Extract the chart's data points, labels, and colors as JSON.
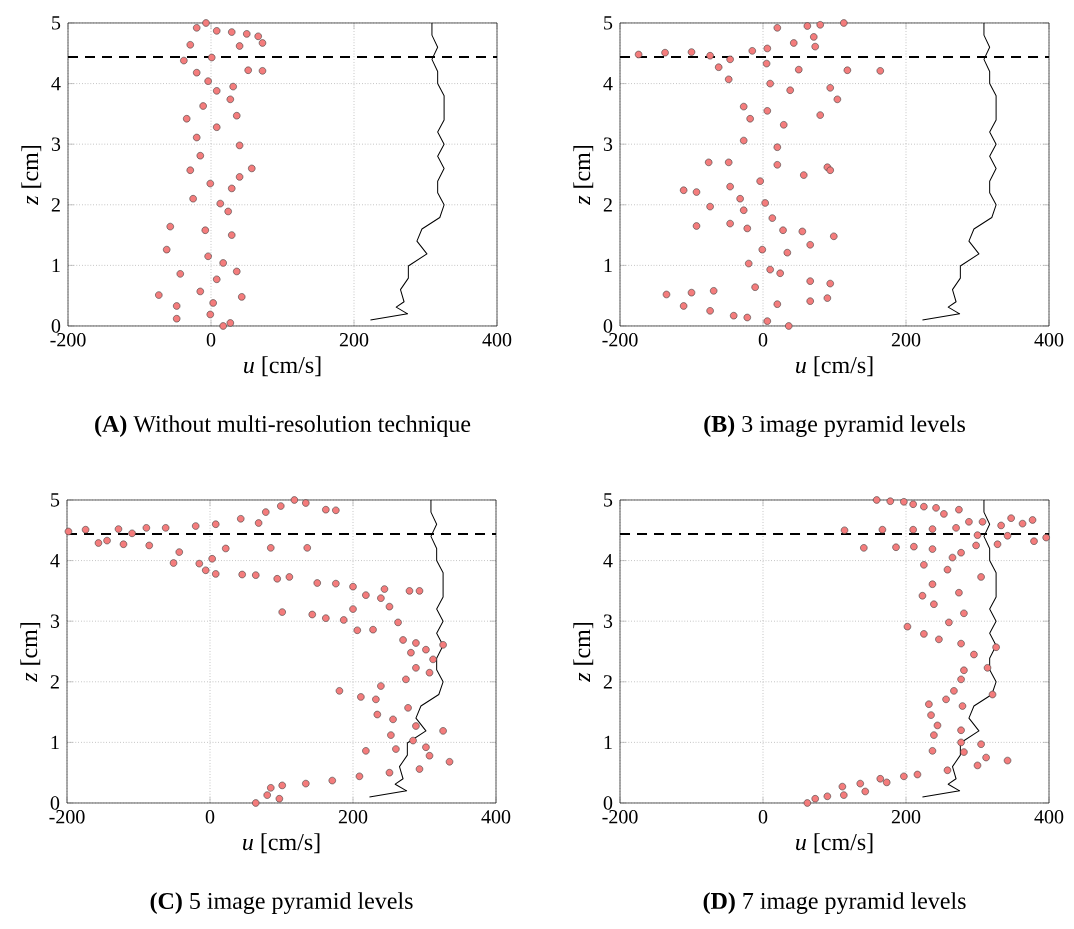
{
  "chart_data": [
    {
      "type": "scatter",
      "title": "**(A)** Without multi-resolution technique",
      "xlabel": "*u* [cm/s]",
      "ylabel": "*z* [cm]",
      "xlim": [
        -200,
        400
      ],
      "ylim": [
        0,
        5
      ],
      "xticks": [
        -200,
        0,
        200,
        400
      ],
      "yticks": [
        0,
        1,
        2,
        3,
        4,
        5
      ],
      "grid": true,
      "ref_lines": [
        {
          "axis": "y",
          "value": 4.44,
          "color": "#000000",
          "line_style": "dashed"
        }
      ],
      "series": [
        {
          "marker": "circle",
          "color": "#f47c7c",
          "x": [
            -7,
            -20,
            8,
            29,
            50,
            66,
            72,
            40,
            -29,
            -38,
            1,
            -20,
            52,
            72,
            -4,
            31,
            8,
            27,
            -11,
            -34,
            36,
            8,
            -20,
            40,
            -15,
            57,
            -29,
            40,
            -1,
            29,
            -25,
            13,
            24,
            -57,
            -8,
            29,
            -62,
            -4,
            17,
            36,
            -43,
            8,
            -15,
            -73,
            43,
            3,
            -48,
            -1,
            -48,
            27,
            17
          ],
          "values": [
            5.0,
            4.92,
            4.87,
            4.85,
            4.82,
            4.78,
            4.67,
            4.62,
            4.64,
            4.38,
            4.43,
            4.18,
            4.22,
            4.21,
            4.04,
            3.95,
            3.88,
            3.74,
            3.63,
            3.42,
            3.47,
            3.28,
            3.11,
            2.98,
            2.81,
            2.6,
            2.57,
            2.46,
            2.35,
            2.27,
            2.1,
            2.02,
            1.89,
            1.64,
            1.58,
            1.5,
            1.26,
            1.15,
            1.04,
            0.9,
            0.86,
            0.77,
            0.57,
            0.51,
            0.48,
            0.38,
            0.33,
            0.19,
            0.12,
            0.05,
            0.0
          ]
        },
        {
          "type": "line",
          "marker": "none",
          "color": "#000000",
          "x": [
            223,
            275,
            259,
            270,
            265,
            276,
            276,
            302,
            288,
            295,
            320,
            326,
            317,
            317,
            326,
            317,
            326,
            317,
            326,
            326,
            317,
            317,
            309,
            317,
            309,
            309
          ],
          "values": [
            0.1,
            0.2,
            0.31,
            0.4,
            0.6,
            0.79,
            0.99,
            1.19,
            1.4,
            1.6,
            1.79,
            2.0,
            2.2,
            2.39,
            2.6,
            2.8,
            3.0,
            3.2,
            3.4,
            3.8,
            4.0,
            4.2,
            4.4,
            4.6,
            4.8,
            5.0
          ]
        }
      ]
    },
    {
      "type": "scatter",
      "title": "**(B)** 3 image pyramid levels",
      "xlabel": "*u* [cm/s]",
      "ylabel": "*z* [cm]",
      "xlim": [
        -200,
        400
      ],
      "ylim": [
        0,
        5
      ],
      "xticks": [
        -200,
        0,
        200,
        400
      ],
      "yticks": [
        0,
        1,
        2,
        3,
        4,
        5
      ],
      "grid": true,
      "ref_lines": [
        {
          "axis": "y",
          "value": 4.44,
          "color": "#000000",
          "line_style": "dashed"
        }
      ],
      "series": [
        {
          "marker": "circle",
          "color": "#f47c7c",
          "x": [
            113,
            80,
            20,
            62,
            71,
            43,
            73,
            6,
            -15,
            -174,
            -137,
            -100,
            -74,
            -46,
            -62,
            5,
            50,
            118,
            164,
            -48,
            10,
            94,
            38,
            104,
            -27,
            6,
            80,
            -18,
            29,
            -27,
            20,
            -76,
            -48,
            20,
            90,
            94,
            57,
            -4,
            -46,
            -111,
            -93,
            -32,
            3,
            -74,
            -27,
            13,
            -93,
            -46,
            -22,
            28,
            99,
            55,
            66,
            -1,
            34,
            -20,
            10,
            24,
            66,
            94,
            -11,
            -69,
            -135,
            -100,
            90,
            66,
            20,
            -111,
            -74,
            -41,
            -22,
            6,
            36
          ],
          "values": [
            5.0,
            4.97,
            4.92,
            4.95,
            4.77,
            4.67,
            4.61,
            4.58,
            4.54,
            4.48,
            4.51,
            4.52,
            4.46,
            4.4,
            4.27,
            4.33,
            4.23,
            4.22,
            4.21,
            4.07,
            4.0,
            3.93,
            3.89,
            3.74,
            3.62,
            3.55,
            3.48,
            3.42,
            3.32,
            3.06,
            2.95,
            2.7,
            2.7,
            2.66,
            2.62,
            2.57,
            2.49,
            2.39,
            2.3,
            2.24,
            2.21,
            2.1,
            2.03,
            1.97,
            1.91,
            1.78,
            1.65,
            1.69,
            1.61,
            1.58,
            1.48,
            1.56,
            1.34,
            1.26,
            1.21,
            1.03,
            0.93,
            0.87,
            0.74,
            0.7,
            0.64,
            0.58,
            0.52,
            0.55,
            0.46,
            0.41,
            0.36,
            0.33,
            0.25,
            0.17,
            0.14,
            0.08,
            0.0
          ]
        },
        {
          "type": "line",
          "marker": "none",
          "color": "#000000",
          "x": [
            223,
            275,
            259,
            270,
            265,
            276,
            276,
            302,
            288,
            295,
            320,
            326,
            317,
            317,
            326,
            317,
            326,
            317,
            326,
            326,
            317,
            317,
            309,
            317,
            309,
            309
          ],
          "values": [
            0.1,
            0.2,
            0.31,
            0.4,
            0.6,
            0.79,
            0.99,
            1.19,
            1.4,
            1.6,
            1.79,
            2.0,
            2.2,
            2.39,
            2.6,
            2.8,
            3.0,
            3.2,
            3.4,
            3.8,
            4.0,
            4.2,
            4.4,
            4.6,
            4.8,
            5.0
          ]
        }
      ]
    },
    {
      "type": "scatter",
      "title": "**(C)** 5 image pyramid levels",
      "xlabel": "*u* [cm/s]",
      "ylabel": "*z* [cm]",
      "xlim": [
        -200,
        400
      ],
      "ylim": [
        0,
        5
      ],
      "xticks": [
        -200,
        0,
        200,
        400
      ],
      "yticks": [
        0,
        1,
        2,
        3,
        4,
        5
      ],
      "grid": true,
      "ref_lines": [
        {
          "axis": "y",
          "value": 4.44,
          "color": "#000000",
          "line_style": "dashed"
        }
      ],
      "series": [
        {
          "marker": "circle",
          "color": "#f47c7c",
          "x": [
            118,
            99,
            134,
            162,
            176,
            78,
            43,
            68,
            8,
            -20,
            -62,
            -89,
            -128,
            -174,
            -198,
            -109,
            -144,
            -156,
            -121,
            -85,
            22,
            85,
            136,
            -43,
            -51,
            -15,
            3,
            -6,
            8,
            45,
            64,
            94,
            111,
            150,
            176,
            200,
            244,
            279,
            293,
            218,
            239,
            251,
            101,
            143,
            162,
            187,
            200,
            206,
            228,
            263,
            270,
            288,
            326,
            302,
            281,
            312,
            288,
            307,
            274,
            239,
            181,
            211,
            232,
            277,
            234,
            256,
            288,
            326,
            253,
            284,
            302,
            218,
            260,
            307,
            335,
            293,
            251,
            209,
            171,
            134,
            101,
            85,
            97,
            64,
            80
          ],
          "values": [
            5.0,
            4.9,
            4.95,
            4.84,
            4.83,
            4.8,
            4.69,
            4.62,
            4.6,
            4.57,
            4.54,
            4.54,
            4.52,
            4.51,
            4.48,
            4.45,
            4.33,
            4.29,
            4.27,
            4.25,
            4.2,
            4.21,
            4.21,
            4.14,
            3.96,
            3.95,
            4.03,
            3.84,
            3.78,
            3.77,
            3.76,
            3.7,
            3.73,
            3.63,
            3.62,
            3.57,
            3.53,
            3.5,
            3.5,
            3.43,
            3.38,
            3.24,
            3.15,
            3.11,
            3.05,
            3.02,
            3.2,
            2.85,
            2.86,
            2.98,
            2.69,
            2.64,
            2.61,
            2.53,
            2.48,
            2.37,
            2.23,
            2.15,
            2.04,
            1.93,
            1.85,
            1.75,
            1.71,
            1.57,
            1.46,
            1.38,
            1.27,
            1.19,
            1.12,
            1.03,
            0.92,
            0.86,
            0.89,
            0.78,
            0.68,
            0.56,
            0.5,
            0.44,
            0.37,
            0.32,
            0.29,
            0.25,
            0.07,
            0.0,
            0.13
          ]
        },
        {
          "type": "line",
          "marker": "none",
          "color": "#000000",
          "x": [
            223,
            275,
            259,
            270,
            265,
            276,
            276,
            302,
            288,
            295,
            320,
            326,
            317,
            317,
            326,
            317,
            326,
            317,
            326,
            326,
            317,
            317,
            309,
            317,
            309,
            309
          ],
          "values": [
            0.1,
            0.2,
            0.31,
            0.4,
            0.6,
            0.79,
            0.99,
            1.19,
            1.4,
            1.6,
            1.79,
            2.0,
            2.2,
            2.39,
            2.6,
            2.8,
            3.0,
            3.2,
            3.4,
            3.8,
            4.0,
            4.2,
            4.4,
            4.6,
            4.8,
            5.0
          ]
        }
      ]
    },
    {
      "type": "scatter",
      "title": "**(D)** 7 image pyramid levels",
      "xlabel": "*u* [cm/s]",
      "ylabel": "*z* [cm]",
      "xlim": [
        -200,
        400
      ],
      "ylim": [
        0,
        5
      ],
      "xticks": [
        -200,
        0,
        200,
        400
      ],
      "yticks": [
        0,
        1,
        2,
        3,
        4,
        5
      ],
      "grid": true,
      "ref_lines": [
        {
          "axis": "y",
          "value": 4.44,
          "color": "#000000",
          "line_style": "dashed"
        }
      ],
      "series": [
        {
          "marker": "circle",
          "color": "#f47c7c",
          "x": [
            159,
            178,
            197,
            210,
            225,
            242,
            274,
            253,
            288,
            307,
            333,
            347,
            377,
            363,
            114,
            167,
            210,
            237,
            270,
            300,
            342,
            396,
            379,
            328,
            298,
            141,
            186,
            211,
            237,
            277,
            265,
            225,
            258,
            305,
            237,
            274,
            223,
            239,
            281,
            260,
            202,
            225,
            246,
            277,
            326,
            295,
            314,
            281,
            277,
            267,
            321,
            256,
            232,
            279,
            235,
            244,
            277,
            239,
            277,
            305,
            237,
            281,
            312,
            342,
            300,
            258,
            216,
            197,
            164,
            173,
            136,
            143,
            111,
            113,
            90,
            73,
            62
          ],
          "values": [
            5.0,
            4.98,
            4.97,
            4.93,
            4.89,
            4.87,
            4.84,
            4.77,
            4.64,
            4.64,
            4.58,
            4.7,
            4.67,
            4.61,
            4.5,
            4.51,
            4.51,
            4.52,
            4.54,
            4.42,
            4.41,
            4.38,
            4.32,
            4.27,
            4.25,
            4.21,
            4.22,
            4.23,
            4.19,
            4.13,
            4.05,
            3.93,
            3.85,
            3.73,
            3.61,
            3.47,
            3.42,
            3.28,
            3.13,
            2.98,
            2.91,
            2.79,
            2.7,
            2.63,
            2.57,
            2.45,
            2.23,
            2.19,
            2.04,
            1.85,
            1.79,
            1.71,
            1.63,
            1.6,
            1.45,
            1.28,
            1.2,
            1.12,
            1.0,
            0.97,
            0.86,
            0.84,
            0.75,
            0.7,
            0.62,
            0.54,
            0.47,
            0.44,
            0.4,
            0.34,
            0.32,
            0.19,
            0.27,
            0.13,
            0.11,
            0.07,
            0.0
          ]
        },
        {
          "type": "line",
          "marker": "none",
          "color": "#000000",
          "x": [
            223,
            275,
            259,
            270,
            265,
            276,
            276,
            302,
            288,
            295,
            320,
            326,
            317,
            317,
            326,
            317,
            326,
            317,
            326,
            326,
            317,
            317,
            309,
            317,
            309,
            309
          ],
          "values": [
            0.1,
            0.2,
            0.31,
            0.4,
            0.6,
            0.79,
            0.99,
            1.19,
            1.4,
            1.6,
            1.79,
            2.0,
            2.2,
            2.39,
            2.6,
            2.8,
            3.0,
            3.2,
            3.4,
            3.8,
            4.0,
            4.2,
            4.4,
            4.6,
            4.8,
            5.0
          ]
        }
      ]
    }
  ]
}
